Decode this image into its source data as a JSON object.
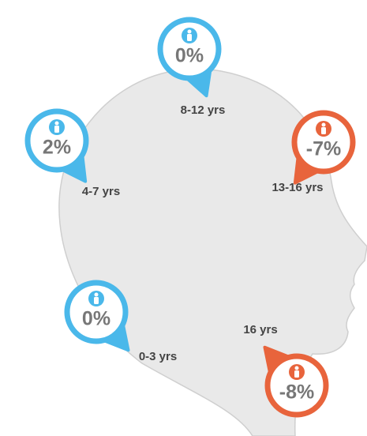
{
  "items": [
    {
      "label": "8-12 yrs",
      "value": "0%",
      "color": "#4ab8ea"
    },
    {
      "label": "4-7 yrs",
      "value": "2%",
      "color": "#4ab8ea"
    },
    {
      "label": "13-16 yrs",
      "value": "-7%",
      "color": "#e8643c"
    },
    {
      "label": "0-3 yrs",
      "value": "0%",
      "color": "#4ab8ea"
    },
    {
      "label": "16 yrs",
      "value": "-8%",
      "color": "#e8643c"
    }
  ]
}
